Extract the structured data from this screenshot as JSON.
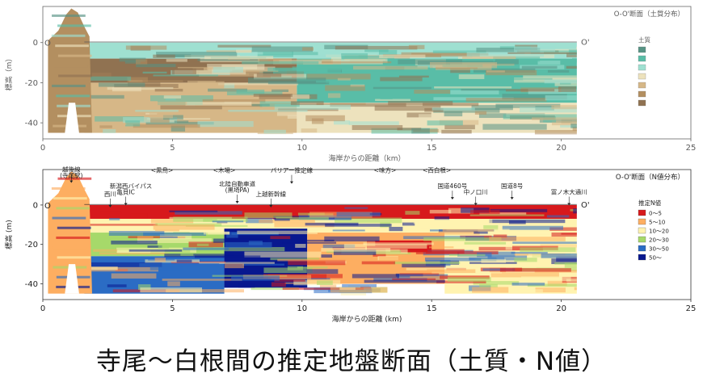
{
  "caption": "寺尾〜白根間の推定地盤断面（土質・N値）",
  "chart_data": [
    {
      "type": "heatmap",
      "title": "O-O'断面（土質分布）",
      "xlabel": "海岸からの距離（km）",
      "ylabel": "標高（m）",
      "xlim": [
        0,
        25
      ],
      "ylim": [
        -48,
        18
      ],
      "x_ticks": [
        "0",
        "5",
        "10",
        "15",
        "20",
        "25"
      ],
      "y_ticks": [
        "0",
        "-20",
        "-40"
      ],
      "section_start_label": "O",
      "section_end_label": "O'",
      "legend_title": "土質",
      "legend": [
        {
          "label": "",
          "color": "#1f6f5c"
        },
        {
          "label": "",
          "color": "#22a88a"
        },
        {
          "label": "",
          "color": "#7fd6c2"
        },
        {
          "label": "",
          "color": "#e8d9a8"
        },
        {
          "label": "",
          "color": "#c9a060"
        },
        {
          "label": "",
          "color": "#9a6a2c"
        },
        {
          "label": "",
          "color": "#6b4318"
        }
      ],
      "layers": [
        {
          "name": "",
          "color": "#7fd6c2",
          "top": 0,
          "bottom": -8,
          "x_from": 1.6,
          "x_to": 20.6
        },
        {
          "name": "",
          "color": "#6b4318",
          "top": -8,
          "bottom": -20,
          "x_from": 1.6,
          "x_to": 9.8
        },
        {
          "name": "",
          "color": "#22a88a",
          "top": -8,
          "bottom": -30,
          "x_from": 9.8,
          "x_to": 20.6
        },
        {
          "name": "",
          "color": "#c9a060",
          "top": -20,
          "bottom": -45,
          "x_from": 1.6,
          "x_to": 9.8
        },
        {
          "name": "",
          "color": "#e8d9a8",
          "top": -30,
          "bottom": -45,
          "x_from": 9.8,
          "x_to": 20.6
        }
      ],
      "annotations": []
    },
    {
      "type": "heatmap",
      "title": "O-O'断面（N値分布）",
      "xlabel": "海岸からの距離 (km)",
      "ylabel": "標高 (m)",
      "xlim": [
        0,
        25
      ],
      "ylim": [
        -48,
        18
      ],
      "x_ticks": [
        "0",
        "5",
        "10",
        "15",
        "20",
        "25"
      ],
      "y_ticks": [
        "0",
        "-20",
        "-40"
      ],
      "section_start_label": "O",
      "section_end_label": "O'",
      "legend_title": "推定N値",
      "legend": [
        {
          "label": "0〜5",
          "color": "#d7191c"
        },
        {
          "label": "5〜10",
          "color": "#fdae61"
        },
        {
          "label": "10〜20",
          "color": "#fff3b0"
        },
        {
          "label": "20〜30",
          "color": "#a6d96a"
        },
        {
          "label": "30〜50",
          "color": "#2b6cc4"
        },
        {
          "label": "50〜",
          "color": "#08188f"
        }
      ],
      "layers": [
        {
          "name": "0〜5",
          "color": "#d7191c",
          "top": 0,
          "bottom": -7,
          "x_from": 1.6,
          "x_to": 20.6
        },
        {
          "name": "10〜20",
          "color": "#fff3b0",
          "top": -7,
          "bottom": -14,
          "x_from": 1.6,
          "x_to": 20.6
        },
        {
          "name": "20〜30",
          "color": "#a6d96a",
          "top": -14,
          "bottom": -26,
          "x_from": 1.6,
          "x_to": 7.0
        },
        {
          "name": "30〜50",
          "color": "#2b6cc4",
          "top": -26,
          "bottom": -45,
          "x_from": 1.6,
          "x_to": 7.0
        },
        {
          "name": "50〜",
          "color": "#08188f",
          "top": -12,
          "bottom": -42,
          "x_from": 7.0,
          "x_to": 10.2
        },
        {
          "name": "5〜10",
          "color": "#fdae61",
          "top": -14,
          "bottom": -40,
          "x_from": 10.2,
          "x_to": 15.5
        },
        {
          "name": "10〜20",
          "color": "#fff3b0",
          "top": -14,
          "bottom": -45,
          "x_from": 15.5,
          "x_to": 20.6
        },
        {
          "name": "0〜5",
          "color": "#d7191c",
          "top": -18,
          "bottom": -24,
          "x_from": 12.5,
          "x_to": 15.0
        }
      ],
      "annotations": [
        {
          "text": "越後線",
          "x": 1.1,
          "y": 17,
          "line": true
        },
        {
          "text": "(寺尾駅)",
          "x": 1.1,
          "y": 14,
          "line": false
        },
        {
          "text": "新潟西バイパス",
          "x": 3.4,
          "y": 8.5,
          "line": false
        },
        {
          "text": "亀貝IC",
          "x": 3.2,
          "y": 5.5,
          "line": true
        },
        {
          "text": "西川",
          "x": 2.6,
          "y": 4.5,
          "line": true
        },
        {
          "text": "<黒鳥>",
          "x": 4.6,
          "y": 16.5,
          "line": false
        },
        {
          "text": "<木場>",
          "x": 7.0,
          "y": 16.5,
          "line": false
        },
        {
          "text": "北陸自動車道",
          "x": 7.5,
          "y": 9.5,
          "line": false
        },
        {
          "text": "(黒埼PA)",
          "x": 7.5,
          "y": 6.5,
          "line": true
        },
        {
          "text": "バリアー推定線",
          "x": 9.6,
          "y": 16.5,
          "line": true
        },
        {
          "text": "上越新幹線",
          "x": 8.8,
          "y": 4.5,
          "line": true
        },
        {
          "text": "<味方>",
          "x": 13.2,
          "y": 16.5,
          "line": false
        },
        {
          "text": "<西白根>",
          "x": 15.2,
          "y": 16.5,
          "line": false
        },
        {
          "text": "国道460号",
          "x": 15.8,
          "y": 8.5,
          "line": true
        },
        {
          "text": "中ノ口川",
          "x": 16.7,
          "y": 5.5,
          "line": true
        },
        {
          "text": "国道8号",
          "x": 18.1,
          "y": 8.5,
          "line": true
        },
        {
          "text": "冨ノ木大通川",
          "x": 20.3,
          "y": 5.5,
          "line": true
        }
      ]
    }
  ]
}
